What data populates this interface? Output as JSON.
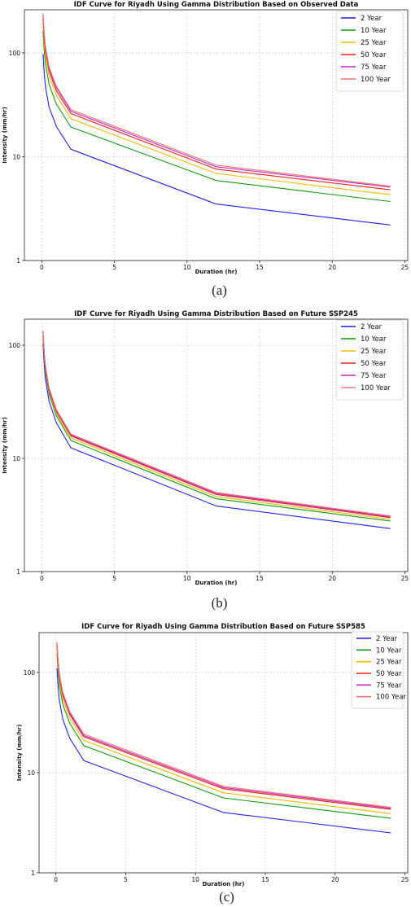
{
  "chart_data": [
    {
      "type": "line",
      "caption": "(a)",
      "title": "IDF Curve for Riyadh Using Gamma Distribution Based on Observed Data",
      "xlabel": "Duration (hr)",
      "ylabel": "Intensity (mm/hr)",
      "yscale": "log",
      "xlim": [
        -1.2,
        25.2
      ],
      "ylim": [
        1,
        260
      ],
      "xticks": [
        "0",
        "5",
        "10",
        "15",
        "20",
        "25"
      ],
      "yticks": [
        "1",
        "10",
        "100"
      ],
      "grid": true,
      "legend": "top-right",
      "x": [
        0.083,
        0.167,
        0.25,
        0.5,
        1,
        2,
        12,
        24
      ],
      "series": [
        {
          "name": "2 Year",
          "color": "#1f1fe8",
          "values": [
            98,
            62,
            47,
            30,
            19.5,
            11.8,
            3.5,
            2.2
          ]
        },
        {
          "name": "10 Year",
          "color": "#0e9a0e",
          "values": [
            162,
            103,
            78,
            50,
            32,
            19.3,
            5.9,
            3.7
          ]
        },
        {
          "name": "25 Year",
          "color": "#f5b800",
          "values": [
            194,
            124,
            94,
            60,
            39,
            23.2,
            6.9,
            4.3
          ]
        },
        {
          "name": "50 Year",
          "color": "#e82020",
          "values": [
            217,
            138,
            105,
            67,
            43,
            26.0,
            7.6,
            4.8
          ]
        },
        {
          "name": "75 Year",
          "color": "#c02ac0",
          "values": [
            230,
            146,
            111,
            71,
            46,
            27.4,
            8.0,
            5.1
          ]
        },
        {
          "name": "100 Year",
          "color": "#ea7272",
          "values": [
            238,
            151,
            115,
            73,
            47.5,
            28.4,
            8.3,
            5.2
          ]
        }
      ]
    },
    {
      "type": "line",
      "caption": "(b)",
      "title": "IDF Curve for Riyadh Using Gamma Distribution Based on Future SSP245",
      "xlabel": "Duration (hr)",
      "ylabel": "Intensity (mm/hr)",
      "yscale": "log",
      "xlim": [
        -1.2,
        25.2
      ],
      "ylim": [
        1,
        170
      ],
      "xticks": [
        "0",
        "5",
        "10",
        "15",
        "20",
        "25"
      ],
      "yticks": [
        "1",
        "10",
        "100"
      ],
      "grid": true,
      "legend": "top-right",
      "x": [
        0.083,
        0.167,
        0.25,
        0.5,
        1,
        2,
        12,
        24
      ],
      "series": [
        {
          "name": "2 Year",
          "color": "#1f1fe8",
          "values": [
            103,
            66,
            50,
            32,
            20.6,
            12.4,
            3.8,
            2.4
          ]
        },
        {
          "name": "10 Year",
          "color": "#0e9a0e",
          "values": [
            118,
            76,
            58,
            37,
            23.8,
            14.4,
            4.4,
            2.8
          ]
        },
        {
          "name": "25 Year",
          "color": "#f5b800",
          "values": [
            124,
            80,
            61,
            39,
            25.0,
            15.2,
            4.6,
            2.9
          ]
        },
        {
          "name": "50 Year",
          "color": "#e82020",
          "values": [
            129,
            83,
            63,
            40,
            26.0,
            15.8,
            4.8,
            3.0
          ]
        },
        {
          "name": "75 Year",
          "color": "#c02ac0",
          "values": [
            132,
            84,
            64,
            41,
            26.5,
            16.1,
            4.9,
            3.05
          ]
        },
        {
          "name": "100 Year",
          "color": "#ea7272",
          "values": [
            135,
            86,
            65,
            42,
            27.0,
            16.4,
            5.0,
            3.1
          ]
        }
      ]
    },
    {
      "type": "line",
      "caption": "(c)",
      "title": "IDF Curve for Riyadh Using Gamma Distribution Based on Future SSP585",
      "xlabel": "Duration (hr)",
      "ylabel": "Intensity (mm/hr)",
      "yscale": "log",
      "xlim": [
        -1.2,
        25.2
      ],
      "ylim": [
        1,
        250
      ],
      "xticks": [
        "0",
        "5",
        "10",
        "15",
        "20",
        "25"
      ],
      "yticks": [
        "1",
        "10",
        "100"
      ],
      "grid": true,
      "legend": "top-right",
      "x": [
        0.083,
        0.167,
        0.25,
        0.5,
        1,
        2,
        12,
        24
      ],
      "series": [
        {
          "name": "2 Year",
          "color": "#1f1fe8",
          "values": [
            110,
            70,
            53,
            34,
            22,
            13.2,
            4.0,
            2.5
          ]
        },
        {
          "name": "10 Year",
          "color": "#0e9a0e",
          "values": [
            155,
            99,
            75,
            48,
            31,
            18.6,
            5.6,
            3.5
          ]
        },
        {
          "name": "25 Year",
          "color": "#f5b800",
          "values": [
            175,
            112,
            85,
            54,
            35,
            21.0,
            6.3,
            3.9
          ]
        },
        {
          "name": "50 Year",
          "color": "#e82020",
          "values": [
            190,
            121,
            92,
            59,
            38,
            22.8,
            6.9,
            4.3
          ]
        },
        {
          "name": "75 Year",
          "color": "#c02ac0",
          "values": [
            196,
            125,
            95,
            61,
            39,
            23.5,
            7.1,
            4.4
          ]
        },
        {
          "name": "100 Year",
          "color": "#ea7272",
          "values": [
            202,
            129,
            98,
            63,
            40.5,
            24.3,
            7.3,
            4.5
          ]
        }
      ]
    }
  ]
}
